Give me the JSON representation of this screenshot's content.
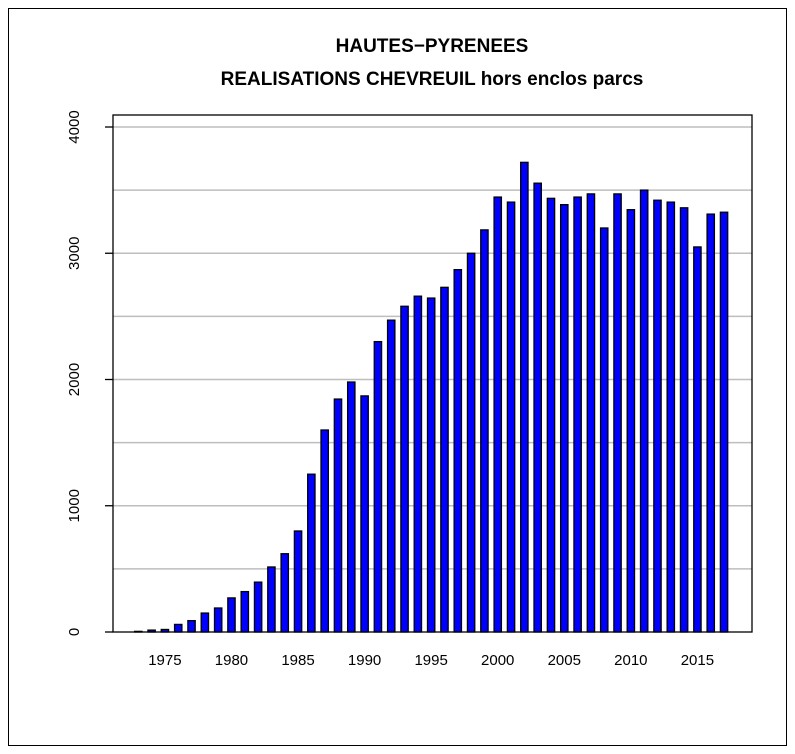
{
  "chart_data": {
    "type": "bar",
    "title": [
      "HAUTES−PYRENEES",
      "REALISATIONS CHEVREUIL hors enclos parcs"
    ],
    "x": [
      1973,
      1974,
      1975,
      1976,
      1977,
      1978,
      1979,
      1980,
      1981,
      1982,
      1983,
      1984,
      1985,
      1986,
      1987,
      1988,
      1989,
      1990,
      1991,
      1992,
      1993,
      1994,
      1995,
      1996,
      1997,
      1998,
      1999,
      2000,
      2001,
      2002,
      2003,
      2004,
      2005,
      2006,
      2007,
      2008,
      2009,
      2010,
      2011,
      2012,
      2013,
      2014,
      2015,
      2016,
      2017
    ],
    "values": [
      5,
      15,
      20,
      60,
      90,
      150,
      190,
      270,
      320,
      395,
      515,
      620,
      800,
      1250,
      1600,
      1845,
      1980,
      1870,
      2300,
      2470,
      2580,
      2660,
      2645,
      2730,
      2870,
      3000,
      3185,
      3445,
      3405,
      3720,
      3555,
      3435,
      3385,
      3445,
      3470,
      3200,
      3470,
      3345,
      3500,
      3420,
      3405,
      3360,
      3050,
      3310,
      3325
    ],
    "color": "#0000ff",
    "xlim": [
      1971.1,
      2019.1
    ],
    "xticks": [
      1975,
      1980,
      1985,
      1990,
      1995,
      2000,
      2005,
      2010,
      2015
    ],
    "ylim": [
      0,
      4000
    ],
    "yticks": [
      0,
      1000,
      2000,
      3000,
      4000
    ],
    "grid_lines": [
      500,
      1000,
      1500,
      2000,
      2500,
      3000,
      3500,
      4000
    ]
  }
}
